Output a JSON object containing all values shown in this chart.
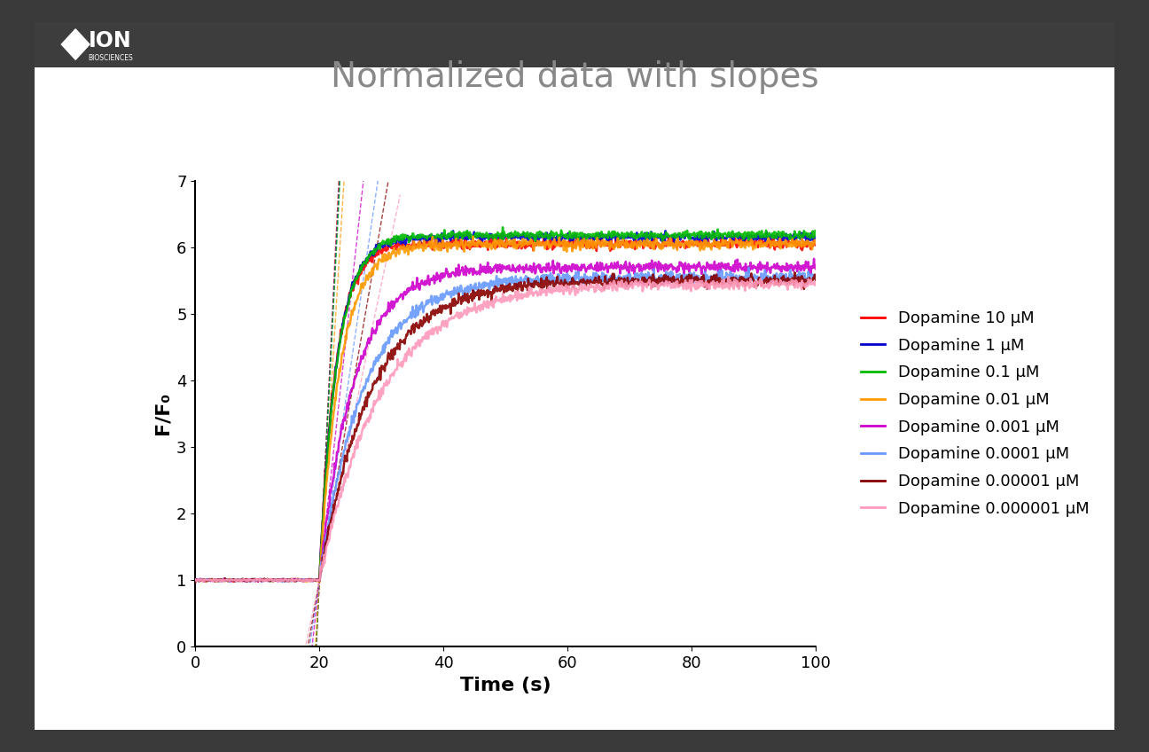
{
  "title": "Normalized data with slopes",
  "xlabel": "Time (s)",
  "ylabel": "F/F₀",
  "xlim": [
    0,
    100
  ],
  "ylim": [
    0,
    7
  ],
  "yticks": [
    0,
    1,
    2,
    3,
    4,
    5,
    6,
    7
  ],
  "xticks": [
    0,
    20,
    40,
    60,
    80,
    100
  ],
  "outer_background": "#3a3a3a",
  "inner_background": "#ffffff",
  "series": [
    {
      "label": "Dopamine 10 μM",
      "color": "#ff0000",
      "vmax": 0.38,
      "plateau": 6.05,
      "t0": 20,
      "noise": 0.04,
      "lw": 1.8
    },
    {
      "label": "Dopamine 1 μM",
      "color": "#0000cc",
      "vmax": 0.36,
      "plateau": 6.15,
      "t0": 20,
      "noise": 0.03,
      "lw": 1.8
    },
    {
      "label": "Dopamine 0.1 μM",
      "color": "#00bb00",
      "vmax": 0.35,
      "plateau": 6.18,
      "t0": 20,
      "noise": 0.03,
      "lw": 1.8
    },
    {
      "label": "Dopamine 0.01 μM",
      "color": "#ff9900",
      "vmax": 0.3,
      "plateau": 6.05,
      "t0": 20,
      "noise": 0.04,
      "lw": 1.8
    },
    {
      "label": "Dopamine 0.001 μM",
      "color": "#cc00cc",
      "vmax": 0.18,
      "plateau": 5.7,
      "t0": 20,
      "noise": 0.04,
      "lw": 1.8
    },
    {
      "label": "Dopamine 0.0001 μM",
      "color": "#6699ff",
      "vmax": 0.14,
      "plateau": 5.55,
      "t0": 20,
      "noise": 0.04,
      "lw": 1.8
    },
    {
      "label": "Dopamine 0.00001 μM",
      "color": "#880000",
      "vmax": 0.12,
      "plateau": 5.5,
      "t0": 20,
      "noise": 0.04,
      "lw": 1.8
    },
    {
      "label": "Dopamine 0.000001 μM",
      "color": "#ff99bb",
      "vmax": 0.1,
      "plateau": 5.45,
      "t0": 20,
      "noise": 0.04,
      "lw": 1.8
    }
  ],
  "title_color": "#888888",
  "title_fontsize": 28,
  "axis_fontsize": 16,
  "tick_fontsize": 13,
  "legend_fontsize": 13,
  "logo_bar_color": "#3d3d3d",
  "logo_text_ion": "ION",
  "logo_text_bio": "BIOSCIENCES"
}
